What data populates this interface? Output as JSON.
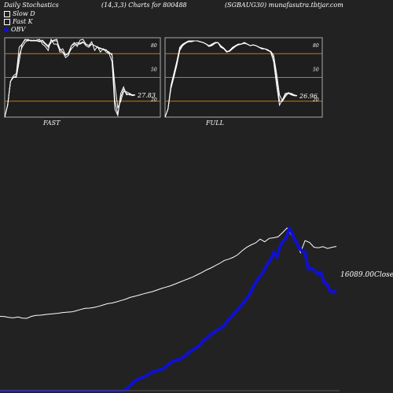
{
  "header": {
    "left": "Daily Stochastics",
    "center": "(14,3,3) Charts for 800488",
    "right": "(SGBAUG30) munafasutra.tbtjar.com"
  },
  "legend": [
    {
      "label": "Slow  D",
      "swatch": "box"
    },
    {
      "label": "Fast K",
      "swatch": "box"
    },
    {
      "label": "OBV",
      "swatch": "dot"
    }
  ],
  "colors": {
    "background": "#222222",
    "panel_bg": "#1e1e1e",
    "panel_border": "#aaaaaa",
    "level_line": "#c87814",
    "line": "#ffffff",
    "obv": "#1010d0"
  },
  "chart_data": [
    {
      "type": "line",
      "title": "FAST",
      "ylim": [
        0,
        100
      ],
      "levels": [
        80,
        50,
        20
      ],
      "level_labels": [
        "80",
        "50",
        "20"
      ],
      "last_value_label": "27.83",
      "series": [
        {
          "values": [
            0,
            15,
            45,
            50,
            50,
            70,
            92,
            97,
            98,
            96,
            97,
            96,
            95,
            97,
            93,
            90,
            96,
            97,
            98,
            82,
            82,
            75,
            78,
            90,
            92,
            94,
            93,
            95,
            90,
            88,
            92,
            90,
            88,
            87,
            85,
            85,
            80,
            80,
            20,
            4,
            25,
            35,
            30,
            28,
            28,
            27.83
          ]
        },
        {
          "values": [
            0,
            15,
            45,
            52,
            55,
            88,
            92,
            98,
            96,
            97,
            96,
            97,
            98,
            92,
            89,
            84,
            98,
            92,
            92,
            84,
            86,
            78,
            81,
            90,
            94,
            89,
            97,
            98,
            92,
            90,
            95,
            84,
            89,
            82,
            86,
            82,
            80,
            70,
            10,
            2,
            30,
            38,
            28,
            29,
            27,
            27.83
          ]
        },
        {
          "values": [
            0,
            15,
            45,
            50,
            52,
            78,
            88,
            94,
            97,
            96,
            96,
            96,
            96,
            95,
            92,
            88,
            94,
            96,
            96,
            86,
            82,
            78,
            80,
            86,
            90,
            92,
            92,
            94,
            92,
            90,
            92,
            90,
            88,
            86,
            86,
            84,
            82,
            78,
            40,
            12,
            20,
            32,
            32,
            30,
            28,
            28
          ]
        }
      ]
    },
    {
      "type": "line",
      "title": "FULL",
      "ylim": [
        0,
        100
      ],
      "levels": [
        80,
        50,
        20
      ],
      "level_labels": [
        "80",
        "50",
        "20"
      ],
      "last_value_label": "26.96",
      "series": [
        {
          "values": [
            0,
            10,
            40,
            55,
            70,
            88,
            92,
            94,
            96,
            96,
            96,
            96,
            95,
            94,
            92,
            90,
            92,
            94,
            94,
            88,
            86,
            82,
            84,
            88,
            90,
            92,
            92,
            94,
            92,
            90,
            91,
            90,
            88,
            87,
            86,
            85,
            82,
            70,
            40,
            15,
            22,
            30,
            30,
            28,
            27,
            26.96
          ]
        },
        {
          "values": [
            0,
            10,
            38,
            52,
            68,
            86,
            91,
            94,
            95,
            96,
            96,
            96,
            95,
            94,
            92,
            89,
            91,
            94,
            94,
            89,
            86,
            82,
            83,
            87,
            90,
            92,
            92,
            94,
            92,
            90,
            91,
            90,
            88,
            86,
            86,
            84,
            82,
            75,
            48,
            20,
            20,
            28,
            31,
            29,
            27,
            27
          ]
        },
        {
          "values": [
            0,
            10,
            36,
            50,
            65,
            84,
            90,
            93,
            95,
            95,
            96,
            96,
            95,
            94,
            92,
            89,
            90,
            93,
            94,
            90,
            87,
            83,
            83,
            86,
            89,
            91,
            92,
            93,
            92,
            90,
            91,
            90,
            88,
            86,
            86,
            84,
            83,
            78,
            55,
            28,
            20,
            26,
            30,
            30,
            28,
            27
          ]
        }
      ]
    },
    {
      "type": "line",
      "close_label": "16089.00Close",
      "series": [
        {
          "name": "Close",
          "values": [
            12950,
            12940,
            12900,
            12880,
            12920,
            12870,
            12860,
            12950,
            12990,
            13000,
            13030,
            13050,
            13070,
            13090,
            13120,
            13140,
            13150,
            13200,
            13260,
            13310,
            13320,
            13350,
            13400,
            13460,
            13520,
            13550,
            13600,
            13660,
            13720,
            13800,
            13850,
            13900,
            13960,
            14010,
            14060,
            14130,
            14200,
            14260,
            14320,
            14400,
            14480,
            14560,
            14640,
            14720,
            14820,
            14920,
            15030,
            15120,
            15230,
            15330,
            15460,
            15520,
            15600,
            15720,
            15900,
            16050,
            16160,
            16250,
            16420,
            16300,
            16450,
            16480,
            16520,
            16710,
            16920,
            16600,
            16310,
            15810,
            16350,
            16270,
            16050,
            16030,
            16080,
            16000,
            16050,
            16089
          ]
        },
        {
          "name": "OBV",
          "values": [
            -3.0,
            -3.0,
            -3.0,
            -3.0,
            -3.0,
            -3.0,
            -3.0,
            -3.0,
            -3.0,
            -3.0,
            -3.0,
            -3.0,
            -3.0,
            -3.0,
            -3.0,
            -3.0,
            -3.0,
            -3.0,
            -3.0,
            -3.0,
            -3.0,
            -3.0,
            -3.0,
            -3.0,
            -3.0,
            -3.0,
            -3.0,
            -3.0,
            -3.0,
            -3.0,
            -3.0,
            -3.0,
            -3.0,
            -3.0,
            -3.0,
            -3.0,
            -3.0,
            -3.0,
            -3.0,
            -3.0,
            -2.9,
            -2.6,
            -2.3,
            -2.0,
            -1.86,
            -1.7,
            -1.6,
            -1.4,
            -1.2,
            -1.1,
            -1.0,
            -0.9,
            -0.8,
            -0.5,
            -0.25,
            -0.1,
            0.05,
            0.1,
            0.3,
            0.5,
            0.8,
            1.0,
            1.2,
            1.4,
            1.7,
            2.1,
            2.3,
            2.6,
            2.8,
            3.0,
            3.2,
            3.4,
            3.8,
            4.2,
            4.5,
            4.9,
            5.2,
            5.6,
            6.0,
            6.4,
            7.0,
            7.6,
            8.1,
            8.5,
            9.0,
            9.6,
            10.0,
            10.8,
            10.3,
            11.3,
            11.9,
            12.2,
            13.2,
            12.6,
            11.9,
            11.3,
            10.9,
            10.8,
            9.1,
            9.2,
            9.0,
            8.6,
            8.8,
            7.8,
            7.6,
            6.9,
            6.8,
            7.0
          ]
        }
      ]
    }
  ]
}
